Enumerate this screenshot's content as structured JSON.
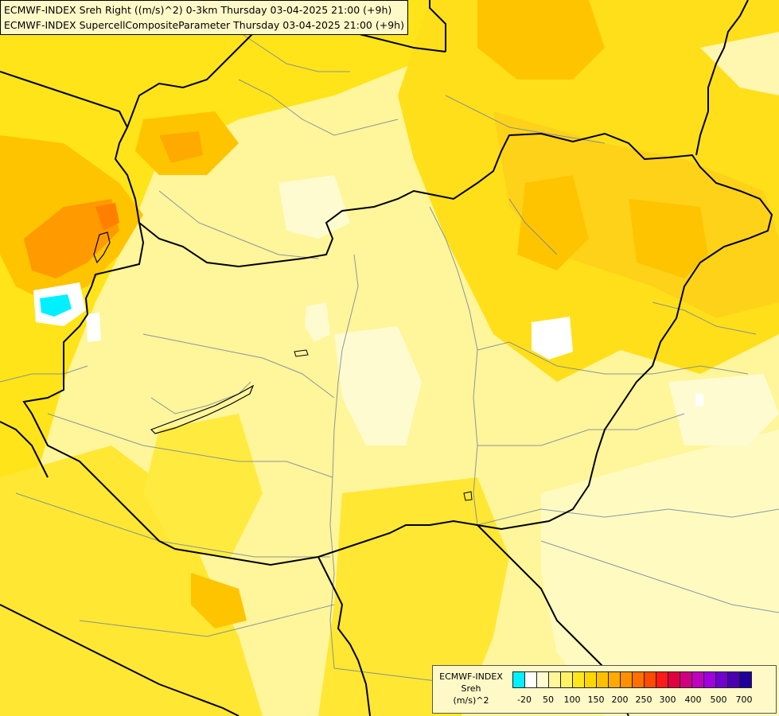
{
  "map": {
    "title_line_1": "ECMWF-INDEX Sreh Right ((m/s)^2) 0-3km Thursday 03-04-2025 21:00 (+9h)",
    "title_line_2": "ECMWF-INDEX SupercellCompositeParameter Thursday 03-04-2025 21:00 (+9h)"
  },
  "legend": {
    "label_line_1": "ECMWF-INDEX",
    "label_line_2": "Sreh",
    "label_line_3": "(m/s)^2",
    "colors": [
      "#00f0ff",
      "#ffffff",
      "#fffbd0",
      "#fff59a",
      "#fff266",
      "#ffe71a",
      "#ffd700",
      "#ffc000",
      "#ffaa00",
      "#ff9000",
      "#ff7000",
      "#ff4a00",
      "#ff1a1a",
      "#e00040",
      "#d00080",
      "#c000c0",
      "#a000e0",
      "#7000d0",
      "#4a00b0",
      "#20009a"
    ],
    "ticks": [
      "-20",
      "50",
      "100",
      "150",
      "200",
      "250",
      "300",
      "400",
      "500",
      "700"
    ]
  }
}
